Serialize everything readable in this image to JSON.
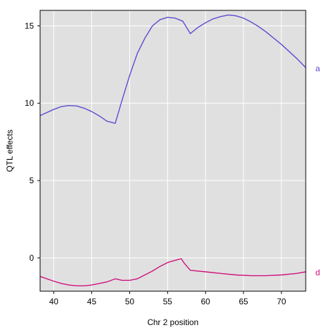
{
  "chart_data": {
    "type": "line",
    "title": "",
    "xlabel": "Chr 2 position",
    "ylabel": "QTL effects",
    "xlim": [
      38.2,
      73.2
    ],
    "ylim": [
      -2.15,
      16.0
    ],
    "xticks": [
      40,
      45,
      50,
      55,
      60,
      65,
      70
    ],
    "yticks": [
      0,
      5,
      10,
      15
    ],
    "grid": true,
    "legend": "right-margin",
    "colors": {
      "panel_bg": "#e0e0e0",
      "grid": "#ffffff",
      "a": "#5a4bd1",
      "d": "#d0107e"
    },
    "series": [
      {
        "name": "a",
        "color": "#5a4bd1",
        "x": [
          38.2,
          40,
          41,
          42,
          43,
          44,
          45,
          46,
          47,
          48.1,
          49,
          50,
          51,
          52,
          53,
          54,
          55,
          56,
          57,
          58,
          59,
          60,
          61,
          62,
          63,
          64,
          65,
          66,
          67,
          68,
          69,
          70,
          71,
          72,
          73.2
        ],
        "y": [
          9.2,
          9.6,
          9.78,
          9.85,
          9.82,
          9.68,
          9.46,
          9.18,
          8.84,
          8.7,
          10.2,
          11.8,
          13.2,
          14.2,
          15.0,
          15.4,
          15.55,
          15.5,
          15.3,
          14.5,
          14.9,
          15.2,
          15.45,
          15.6,
          15.7,
          15.65,
          15.5,
          15.25,
          14.95,
          14.6,
          14.2,
          13.8,
          13.35,
          12.9,
          12.3
        ]
      },
      {
        "name": "d",
        "color": "#d0107e",
        "x": [
          38.2,
          40,
          41,
          42,
          43,
          44,
          45,
          46,
          47,
          48.1,
          49,
          50,
          51,
          52,
          53,
          54,
          55,
          56,
          56.8,
          57.2,
          58,
          60,
          62,
          64,
          66,
          68,
          70,
          72,
          73.2
        ],
        "y": [
          -1.2,
          -1.5,
          -1.65,
          -1.75,
          -1.8,
          -1.8,
          -1.75,
          -1.65,
          -1.55,
          -1.35,
          -1.45,
          -1.45,
          -1.35,
          -1.1,
          -0.85,
          -0.55,
          -0.3,
          -0.15,
          -0.05,
          -0.35,
          -0.8,
          -0.9,
          -1.0,
          -1.1,
          -1.15,
          -1.15,
          -1.1,
          -1.0,
          -0.9
        ]
      }
    ]
  }
}
